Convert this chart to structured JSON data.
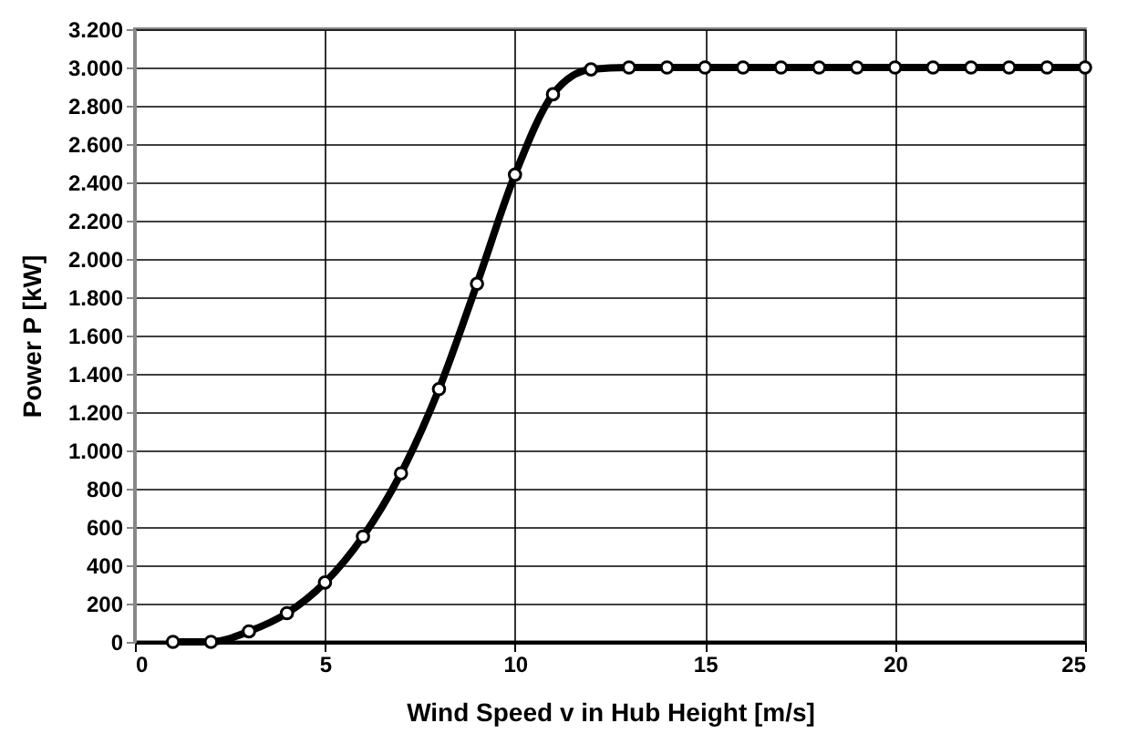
{
  "chart_data": {
    "type": "line",
    "xlabel": "Wind Speed v in Hub Height [m/s]",
    "ylabel": "Power P [kW]",
    "x": [
      1,
      2,
      3,
      4,
      5,
      6,
      7,
      8,
      9,
      10,
      11,
      12,
      13,
      14,
      15,
      16,
      17,
      18,
      19,
      20,
      21,
      22,
      23,
      24,
      25
    ],
    "series": [
      {
        "color": "#000000",
        "values": [
          0,
          0,
          55,
          150,
          310,
          550,
          880,
          1320,
          1870,
          2440,
          2860,
          2990,
          3000,
          3000,
          3000,
          3000,
          3000,
          3000,
          3000,
          3000,
          3000,
          3000,
          3000,
          3000,
          3000
        ]
      }
    ],
    "xlim": [
      0,
      25
    ],
    "xticks": [
      0,
      5,
      10,
      15,
      20,
      25
    ],
    "ylim": [
      0,
      3200
    ],
    "yticks": [
      0,
      200,
      400,
      600,
      800,
      {
        "value": 1000,
        "label": "1.000"
      },
      {
        "value": 1200,
        "label": "1.200"
      },
      {
        "value": 1400,
        "label": "1.400"
      },
      {
        "value": 1600,
        "label": "1.600"
      },
      {
        "value": 1800,
        "label": "1.800"
      },
      {
        "value": 2000,
        "label": "2.000"
      },
      {
        "value": 2200,
        "label": "2.200"
      },
      {
        "value": 2400,
        "label": "2.400"
      },
      {
        "value": 2600,
        "label": "2.600"
      },
      {
        "value": 2800,
        "label": "2.800"
      },
      {
        "value": 3000,
        "label": "3.000"
      },
      {
        "value": 3200,
        "label": "3.200"
      }
    ],
    "grid": true,
    "marker": "circle",
    "line_style": "solid"
  }
}
